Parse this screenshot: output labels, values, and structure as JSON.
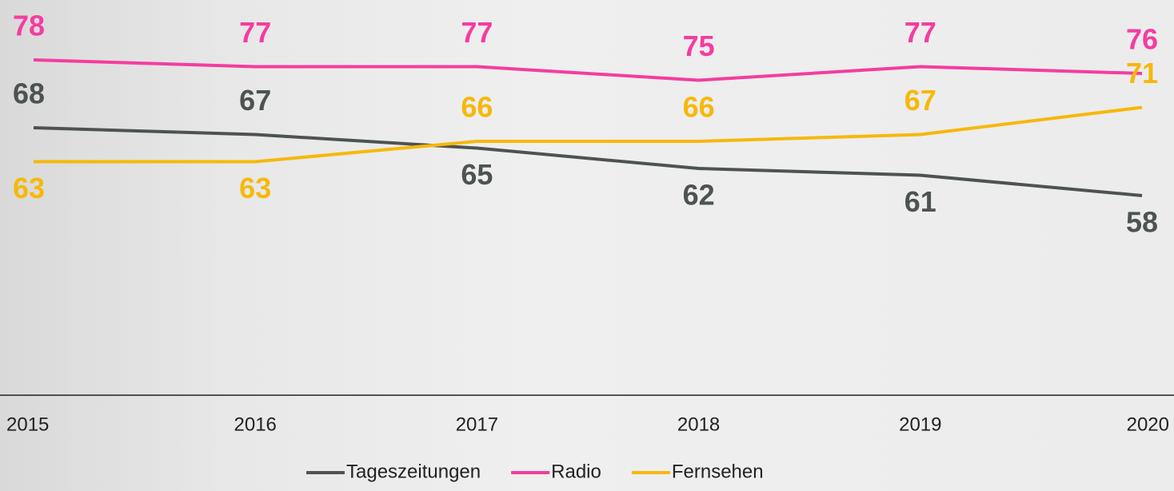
{
  "chart_data": {
    "type": "line",
    "categories": [
      "2015",
      "2016",
      "2017",
      "2018",
      "2019",
      "2020"
    ],
    "series": [
      {
        "name": "Tageszeitungen",
        "color": "#4d5350",
        "values": [
          68,
          67,
          65,
          62,
          61,
          58
        ]
      },
      {
        "name": "Radio",
        "color": "#f53ca0",
        "values": [
          78,
          77,
          77,
          75,
          77,
          76
        ]
      },
      {
        "name": "Fernsehen",
        "color": "#f6b80a",
        "values": [
          63,
          63,
          66,
          66,
          67,
          71
        ]
      }
    ]
  }
}
